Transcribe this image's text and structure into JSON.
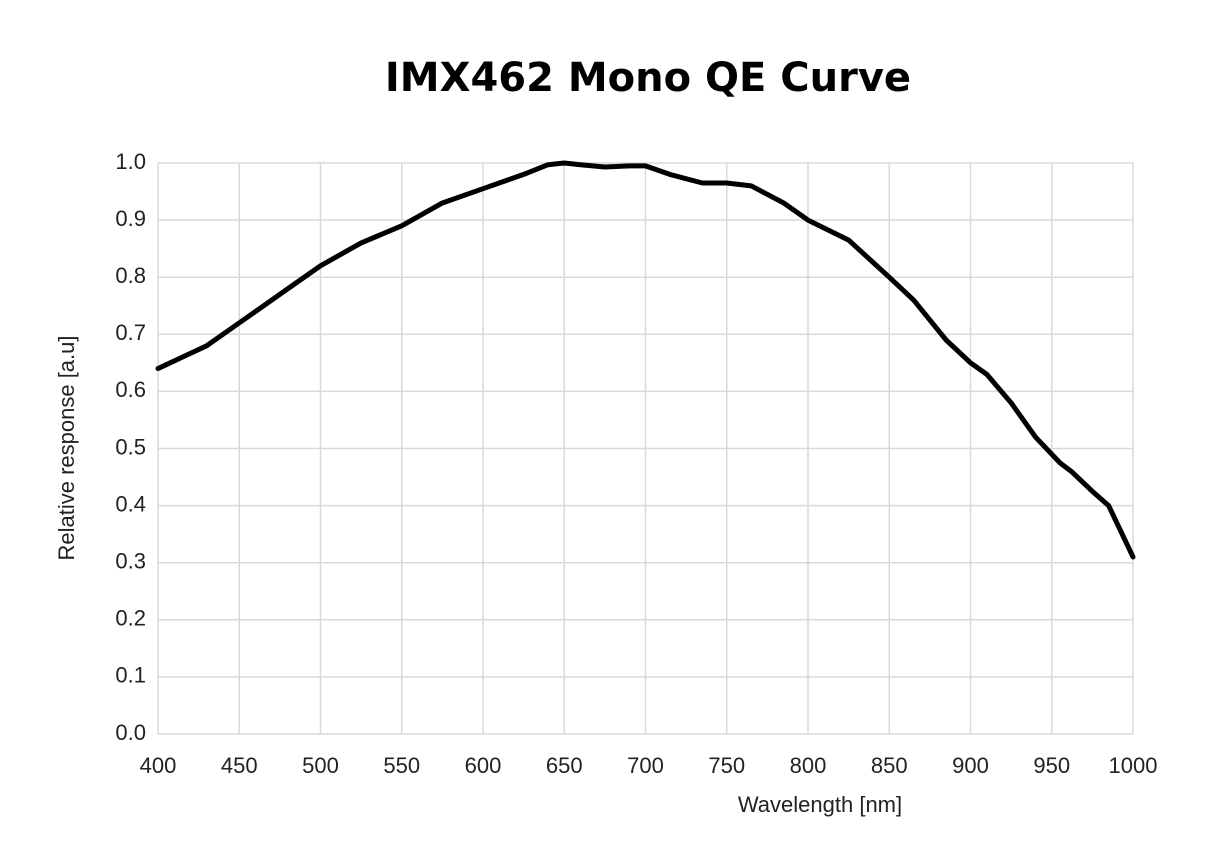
{
  "chart_data": {
    "type": "line",
    "title": "IMX462 Mono QE Curve",
    "x_label": "Wavelength [nm]",
    "y_label": "Relative response [a.u]",
    "grid": true,
    "xlim": [
      400,
      1000
    ],
    "xticks": [
      400,
      450,
      500,
      550,
      600,
      650,
      700,
      750,
      800,
      850,
      900,
      950,
      1000
    ],
    "ylim": [
      0,
      1
    ],
    "yticks": [
      {
        "value": 0,
        "label": "0.0"
      },
      0.1,
      0.2,
      0.3,
      0.4,
      0.5,
      0.6,
      0.7,
      0.8,
      0.9,
      {
        "value": 1,
        "label": "1.0"
      }
    ],
    "x": [
      400,
      415,
      430,
      450,
      475,
      500,
      525,
      550,
      575,
      600,
      625,
      640,
      650,
      660,
      675,
      690,
      700,
      715,
      735,
      750,
      765,
      785,
      800,
      825,
      850,
      865,
      885,
      900,
      910,
      925,
      940,
      955,
      962,
      975,
      985,
      1000
    ],
    "series": [
      {
        "color": "#000000",
        "values": [
          0.64,
          0.66,
          0.68,
          0.72,
          0.77,
          0.82,
          0.86,
          0.89,
          0.93,
          0.955,
          0.98,
          0.997,
          1.0,
          0.997,
          0.993,
          0.995,
          0.995,
          0.98,
          0.965,
          0.965,
          0.96,
          0.93,
          0.9,
          0.865,
          0.8,
          0.76,
          0.69,
          0.65,
          0.63,
          0.58,
          0.52,
          0.475,
          0.46,
          0.425,
          0.4,
          0.31
        ]
      }
    ]
  }
}
